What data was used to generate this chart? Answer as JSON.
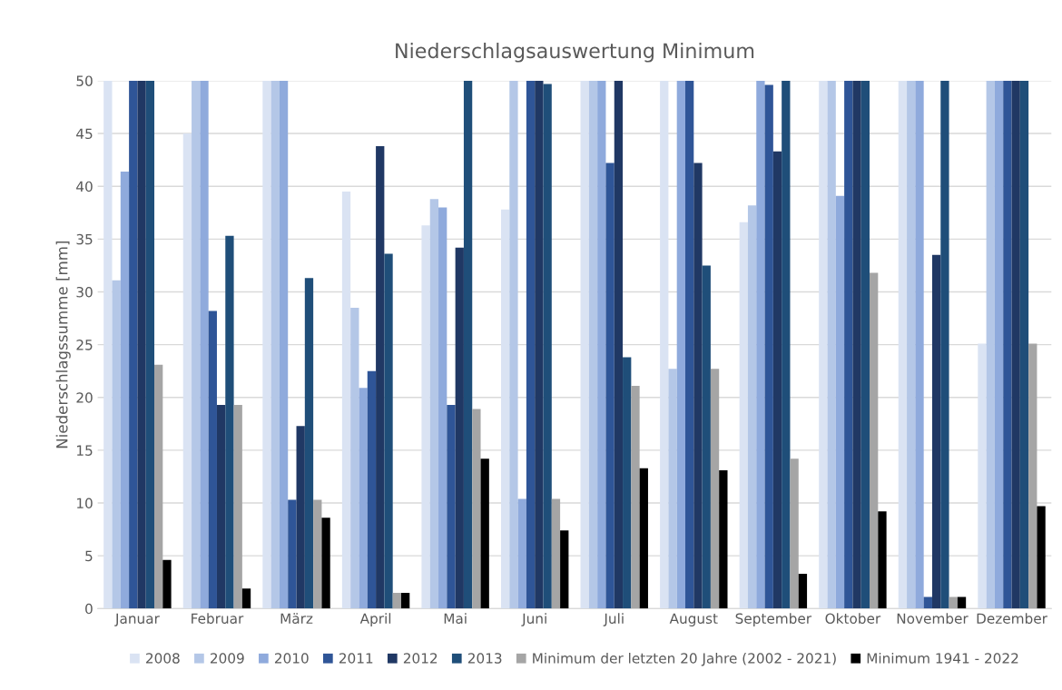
{
  "chart_data": {
    "type": "bar",
    "title": "Niederschlagsauswertung Minimum",
    "ylabel": "Niederschlagssumme [mm]",
    "categories": [
      "Januar",
      "Februar",
      "März",
      "April",
      "Mai",
      "Juni",
      "Juli",
      "August",
      "September",
      "Oktober",
      "November",
      "Dezember"
    ],
    "series": [
      {
        "name": "2008",
        "color": "#dae3f3",
        "values": [
          50,
          45.0,
          50,
          39.5,
          36.3,
          37.8,
          50,
          50,
          36.6,
          50,
          50,
          25.1
        ]
      },
      {
        "name": "2009",
        "color": "#b4c7e7",
        "values": [
          31.1,
          50,
          50,
          28.5,
          38.8,
          50,
          50,
          22.7,
          38.2,
          50,
          50,
          50
        ]
      },
      {
        "name": "2010",
        "color": "#8faadc",
        "values": [
          41.4,
          50,
          50,
          20.9,
          38.0,
          10.4,
          50,
          50,
          50,
          39.1,
          50,
          50
        ]
      },
      {
        "name": "2011",
        "color": "#2f5597",
        "values": [
          50,
          28.2,
          10.3,
          22.5,
          19.3,
          50,
          42.2,
          50,
          49.6,
          50,
          1.1,
          50
        ]
      },
      {
        "name": "2012",
        "color": "#203864",
        "values": [
          50,
          19.3,
          17.3,
          43.8,
          34.2,
          50,
          50,
          42.2,
          43.3,
          50,
          33.5,
          50
        ]
      },
      {
        "name": "2013",
        "color": "#1f4e79",
        "values": [
          50,
          35.3,
          31.3,
          33.6,
          50,
          49.7,
          23.8,
          32.5,
          50,
          50,
          50,
          50
        ]
      },
      {
        "name": "Minimum der letzten 20 Jahre (2002 - 2021)",
        "color": "#a5a5a5",
        "values": [
          23.1,
          19.3,
          10.3,
          1.5,
          18.9,
          10.4,
          21.1,
          22.7,
          14.2,
          31.8,
          1.1,
          25.1
        ]
      },
      {
        "name": "Minimum 1941 - 2022",
        "color": "#000000",
        "values": [
          4.6,
          1.9,
          8.6,
          1.5,
          14.2,
          7.4,
          13.3,
          13.1,
          3.3,
          9.2,
          1.1,
          9.7
        ]
      }
    ],
    "ylim": [
      0,
      50
    ],
    "yticks": [
      0,
      5,
      10,
      15,
      20,
      25,
      30,
      35,
      40,
      45,
      50
    ],
    "grid": "y",
    "legend": "bottom"
  }
}
